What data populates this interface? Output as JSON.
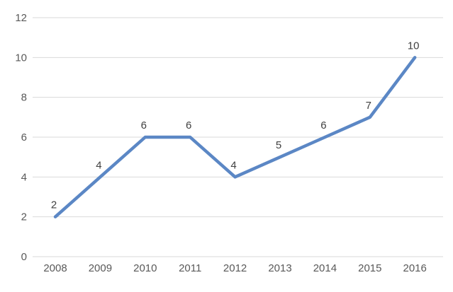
{
  "chart_data": {
    "type": "line",
    "title": "",
    "xlabel": "",
    "ylabel": "",
    "categories": [
      "2008",
      "2009",
      "2010",
      "2011",
      "2012",
      "2013",
      "2014",
      "2015",
      "2016"
    ],
    "series": [
      {
        "name": "series-1",
        "values": [
          2,
          4,
          6,
          6,
          4,
          5,
          6,
          7,
          10
        ],
        "data_labels": [
          "2",
          "4",
          "6",
          "6",
          "4",
          "5",
          "6",
          "7",
          "10"
        ]
      }
    ],
    "ylim": [
      0,
      12
    ],
    "yticks": [
      0,
      2,
      4,
      6,
      8,
      10,
      12
    ],
    "grid": "horizontal",
    "legend": "none",
    "colors": {
      "line": "#5B87C5",
      "gridline": "#D9D9D9",
      "tick_label": "#595959",
      "data_label": "#404040",
      "background": "#FFFFFF"
    }
  }
}
